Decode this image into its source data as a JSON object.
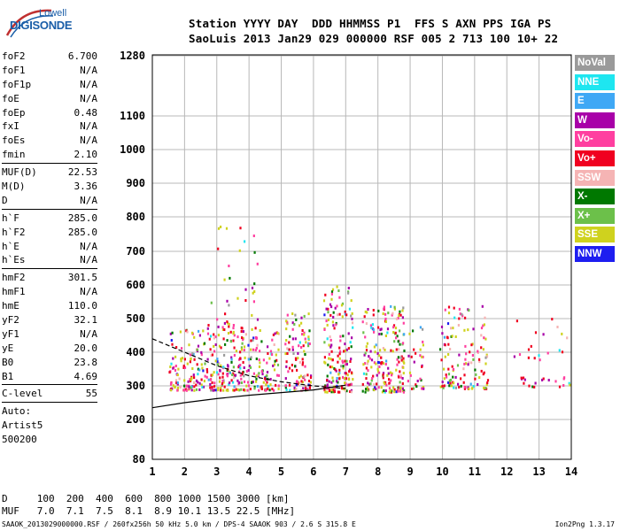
{
  "logo": {
    "line1": "Lowell",
    "line2": "DIGISONDE"
  },
  "header": {
    "row1": "Station YYYY DAY  DDD HHMMSS P1  FFS S AXN PPS IGA PS",
    "row2": "SaoLuis 2013 Jan29 029 000000 RSF 005 2 713 100 10+ 22"
  },
  "params": [
    {
      "label": "foF2",
      "value": "6.700"
    },
    {
      "label": "foF1",
      "value": "N/A"
    },
    {
      "label": "foF1p",
      "value": "N/A"
    },
    {
      "label": "foE",
      "value": "N/A"
    },
    {
      "label": "foEp",
      "value": "0.48"
    },
    {
      "label": "fxI",
      "value": "N/A"
    },
    {
      "label": "foEs",
      "value": "N/A"
    },
    {
      "label": "fmin",
      "value": "2.10"
    },
    {
      "sep": true
    },
    {
      "label": "MUF(D)",
      "value": "22.53"
    },
    {
      "label": "M(D)",
      "value": "3.36"
    },
    {
      "label": "D",
      "value": "N/A"
    },
    {
      "sep": true
    },
    {
      "label": "h`F",
      "value": "285.0"
    },
    {
      "label": "h`F2",
      "value": "285.0"
    },
    {
      "label": "h`E",
      "value": "N/A"
    },
    {
      "label": "h`Es",
      "value": "N/A"
    },
    {
      "sep": true
    },
    {
      "label": "hmF2",
      "value": "301.5"
    },
    {
      "label": "hmF1",
      "value": "N/A"
    },
    {
      "label": "hmE",
      "value": "110.0"
    },
    {
      "label": "yF2",
      "value": "32.1"
    },
    {
      "label": "yF1",
      "value": "N/A"
    },
    {
      "label": "yE",
      "value": "20.0"
    },
    {
      "label": "B0",
      "value": "23.8"
    },
    {
      "label": "B1",
      "value": "4.69"
    },
    {
      "sep": true
    },
    {
      "label": "C-level",
      "value": "55"
    },
    {
      "sep": true
    },
    {
      "note": "Auto:"
    },
    {
      "note": "Artist5"
    },
    {
      "note": "500200"
    }
  ],
  "legend": [
    {
      "label": "NoVal",
      "color": "#9a9a9a"
    },
    {
      "label": "NNE",
      "color": "#1ee6f0"
    },
    {
      "label": "E",
      "color": "#3fa8f5"
    },
    {
      "label": "W",
      "color": "#a800a8"
    },
    {
      "label": "Vo-",
      "color": "#ff3fa0"
    },
    {
      "label": "Vo+",
      "color": "#f00020"
    },
    {
      "label": "SSW",
      "color": "#f5b4b4"
    },
    {
      "label": "X-",
      "color": "#007800"
    },
    {
      "label": "X+",
      "color": "#6cc04a"
    },
    {
      "label": "SSE",
      "color": "#cfd21e"
    },
    {
      "label": "NNW",
      "color": "#1e1ef0"
    }
  ],
  "bottom": {
    "d_row": "D     100  200  400  600  800 1000 1500 3000 [km]",
    "muf_row": "MUF   7.0  7.1  7.5  8.1  8.9 10.1 13.5 22.5 [MHz]"
  },
  "footer": "SAAOK_2013029000000.RSF / 260fx256h 50 kHz 5.0 km / DPS-4 SAAOK 903 / 2.6 S 315.8 E",
  "version": "Ion2Png 1.3.17",
  "chart_data": {
    "type": "scatter",
    "title": "",
    "xlabel": "",
    "ylabel": "",
    "xlim": [
      1,
      14
    ],
    "ylim": [
      80,
      1280
    ],
    "y_scale": "non-linear (ionogram virtual height)",
    "x_ticks": [
      1,
      2,
      3,
      4,
      5,
      6,
      7,
      8,
      9,
      10,
      11,
      12,
      13,
      14
    ],
    "y_ticks": [
      80,
      200,
      300,
      400,
      500,
      600,
      700,
      800,
      900,
      1000,
      1100,
      1280
    ],
    "grid": true,
    "legend_placement": "right",
    "bands": [
      {
        "fmin": 1.5,
        "fmax": 4.9,
        "hmin": 290,
        "hmax": 470,
        "density": "high"
      },
      {
        "fmin": 2.6,
        "fmax": 4.3,
        "hmin": 470,
        "hmax": 790,
        "density": "sparse"
      },
      {
        "fmin": 5.1,
        "fmax": 5.9,
        "hmin": 290,
        "hmax": 520,
        "density": "high"
      },
      {
        "fmin": 6.3,
        "fmax": 7.2,
        "hmin": 285,
        "hmax": 600,
        "density": "high"
      },
      {
        "fmin": 7.5,
        "fmax": 8.8,
        "hmin": 285,
        "hmax": 540,
        "density": "high"
      },
      {
        "fmin": 8.9,
        "fmax": 9.4,
        "hmin": 295,
        "hmax": 480,
        "density": "medium"
      },
      {
        "fmin": 9.9,
        "fmax": 11.4,
        "hmin": 295,
        "hmax": 540,
        "density": "medium"
      },
      {
        "fmin": 12.2,
        "fmax": 14.0,
        "hmin": 300,
        "hmax": 330,
        "density": "medium"
      },
      {
        "fmin": 12.2,
        "fmax": 13.9,
        "hmin": 380,
        "hmax": 510,
        "density": "sparse"
      }
    ],
    "series": [
      {
        "name": "",
        "x": [
          1.0,
          2.0,
          3.0,
          4.0,
          5.0,
          6.0,
          7.0
        ],
        "y": [
          235,
          250,
          262,
          272,
          280,
          288,
          302
        ]
      },
      {
        "name": "",
        "x": [
          1.0,
          2.0,
          3.0,
          4.0,
          5.0,
          6.0,
          7.0
        ],
        "y": [
          440,
          400,
          360,
          330,
          312,
          300,
          292
        ]
      }
    ]
  }
}
